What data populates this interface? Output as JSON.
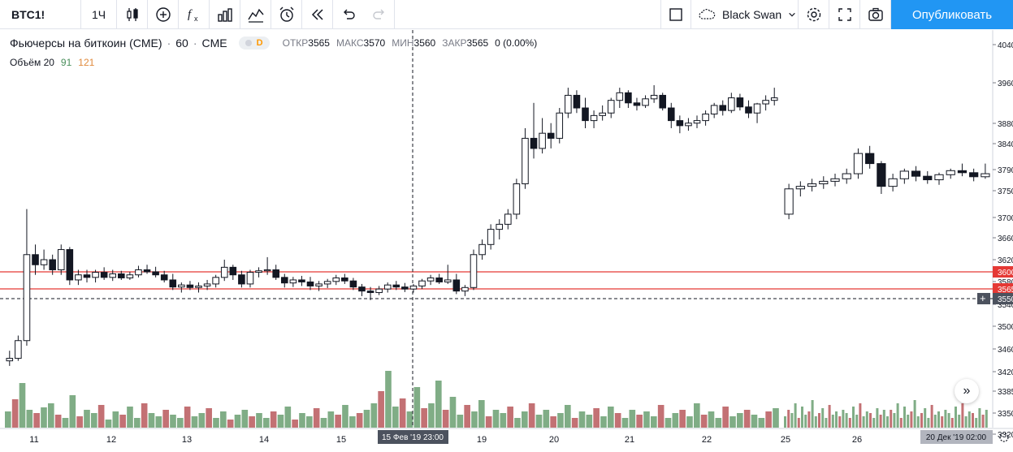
{
  "toolbar": {
    "symbol": "BTC1!",
    "interval": "1Ч",
    "template": "Black Swan",
    "publish": "Опубликовать"
  },
  "legend": {
    "title": "Фьючерсы на биткоин (CME)",
    "sep": "·",
    "interval": "60",
    "exchange": "CME",
    "badge": "D",
    "open_label": "ОТКР",
    "open": "3565",
    "high_label": "МАКС",
    "high": "3570",
    "low_label": "МИН",
    "low": "3560",
    "close_label": "ЗАКР",
    "close": "3565",
    "change": "0 (0.00%)",
    "volume_label": "Объём 20",
    "volume_v1": "91",
    "volume_v2": "121"
  },
  "colors": {
    "up_volume": "#6a9f71",
    "down_volume": "#b8585c",
    "hline": "#e53935",
    "accent": "#2196f3"
  },
  "price_axis": {
    "labels": [
      "4040",
      "3960",
      "3880",
      "3840",
      "3790",
      "3750",
      "3700",
      "3660",
      "3620",
      "3580",
      "3540",
      "3500",
      "3460",
      "3420",
      "3385",
      "3350",
      "3320"
    ],
    "markers": [
      {
        "text": "3600",
        "kind": "red"
      },
      {
        "text": "3565",
        "kind": "red"
      },
      {
        "text": "3550",
        "kind": "dark"
      }
    ]
  },
  "time_axis": {
    "labels": [
      "11",
      "12",
      "13",
      "14",
      "15",
      "19",
      "20",
      "21",
      "22",
      "25",
      "26"
    ],
    "crosshair_label": "15 Фев '19   23:00",
    "range_label": "20 Дек '19   02:00"
  },
  "icons": [
    "candles-icon",
    "add-indicator-icon",
    "fx-icon",
    "compare-icon",
    "templates-icon",
    "alert-icon",
    "replay-icon",
    "undo-icon",
    "redo-icon",
    "fullscreen-icon",
    "settings-icon",
    "expand-icon",
    "camera-icon"
  ],
  "chart_data": {
    "type": "candlestick",
    "title": "Фьючерсы на биткоин (CME) · 60 · CME",
    "ylim": [
      3320,
      4050
    ],
    "hlines": [
      3600,
      3565
    ],
    "crosshair_price": 3550,
    "candles": [
      [
        3420,
        3440,
        3410,
        3425
      ],
      [
        3425,
        3470,
        3420,
        3460
      ],
      [
        3460,
        3720,
        3450,
        3630
      ],
      [
        3630,
        3650,
        3590,
        3610
      ],
      [
        3610,
        3640,
        3600,
        3620
      ],
      [
        3620,
        3630,
        3590,
        3600
      ],
      [
        3600,
        3650,
        3590,
        3640
      ],
      [
        3640,
        3645,
        3570,
        3580
      ],
      [
        3580,
        3600,
        3570,
        3590
      ],
      [
        3590,
        3600,
        3575,
        3585
      ],
      [
        3585,
        3600,
        3575,
        3595
      ],
      [
        3595,
        3605,
        3580,
        3585
      ],
      [
        3585,
        3600,
        3578,
        3592
      ],
      [
        3592,
        3598,
        3580,
        3584
      ],
      [
        3584,
        3596,
        3580,
        3590
      ],
      [
        3590,
        3608,
        3585,
        3600
      ],
      [
        3600,
        3610,
        3592,
        3596
      ],
      [
        3596,
        3606,
        3585,
        3590
      ],
      [
        3590,
        3598,
        3575,
        3580
      ],
      [
        3580,
        3592,
        3560,
        3566
      ],
      [
        3566,
        3575,
        3555,
        3570
      ],
      [
        3570,
        3578,
        3560,
        3565
      ],
      [
        3565,
        3575,
        3555,
        3568
      ],
      [
        3568,
        3580,
        3560,
        3572
      ],
      [
        3572,
        3590,
        3565,
        3585
      ],
      [
        3585,
        3620,
        3578,
        3605
      ],
      [
        3605,
        3610,
        3580,
        3590
      ],
      [
        3590,
        3598,
        3565,
        3572
      ],
      [
        3572,
        3600,
        3565,
        3595
      ],
      [
        3595,
        3605,
        3585,
        3598
      ],
      [
        3598,
        3625,
        3590,
        3600
      ],
      [
        3600,
        3610,
        3580,
        3585
      ],
      [
        3585,
        3592,
        3565,
        3574
      ],
      [
        3574,
        3586,
        3566,
        3580
      ],
      [
        3580,
        3588,
        3568,
        3576
      ],
      [
        3576,
        3586,
        3560,
        3568
      ],
      [
        3568,
        3578,
        3558,
        3572
      ],
      [
        3572,
        3582,
        3564,
        3577
      ],
      [
        3577,
        3590,
        3570,
        3584
      ],
      [
        3584,
        3592,
        3572,
        3578
      ],
      [
        3578,
        3584,
        3560,
        3566
      ],
      [
        3566,
        3572,
        3548,
        3558
      ],
      [
        3558,
        3566,
        3540,
        3555
      ],
      [
        3555,
        3568,
        3550,
        3562
      ],
      [
        3562,
        3575,
        3555,
        3570
      ],
      [
        3570,
        3578,
        3560,
        3566
      ],
      [
        3566,
        3574,
        3556,
        3562
      ],
      [
        3562,
        3572,
        3555,
        3568
      ],
      [
        3568,
        3582,
        3562,
        3578
      ],
      [
        3578,
        3590,
        3570,
        3584
      ],
      [
        3584,
        3592,
        3572,
        3576
      ],
      [
        3576,
        3610,
        3572,
        3580
      ],
      [
        3580,
        3592,
        3552,
        3558
      ],
      [
        3558,
        3570,
        3548,
        3565
      ],
      [
        3565,
        3640,
        3560,
        3630
      ],
      [
        3630,
        3660,
        3620,
        3650
      ],
      [
        3650,
        3690,
        3640,
        3680
      ],
      [
        3680,
        3700,
        3660,
        3690
      ],
      [
        3690,
        3720,
        3680,
        3710
      ],
      [
        3710,
        3780,
        3700,
        3770
      ],
      [
        3770,
        3880,
        3760,
        3860
      ],
      [
        3860,
        3930,
        3820,
        3840
      ],
      [
        3840,
        3900,
        3830,
        3870
      ],
      [
        3870,
        3890,
        3840,
        3860
      ],
      [
        3860,
        3920,
        3850,
        3910
      ],
      [
        3910,
        3960,
        3900,
        3945
      ],
      [
        3945,
        3955,
        3910,
        3920
      ],
      [
        3920,
        3940,
        3880,
        3895
      ],
      [
        3895,
        3915,
        3880,
        3905
      ],
      [
        3905,
        3925,
        3895,
        3910
      ],
      [
        3910,
        3940,
        3900,
        3935
      ],
      [
        3935,
        3960,
        3920,
        3950
      ],
      [
        3950,
        3955,
        3920,
        3930
      ],
      [
        3930,
        3940,
        3915,
        3925
      ],
      [
        3925,
        3945,
        3920,
        3938
      ],
      [
        3938,
        3965,
        3930,
        3945
      ],
      [
        3945,
        3950,
        3915,
        3920
      ],
      [
        3920,
        3930,
        3880,
        3895
      ],
      [
        3895,
        3905,
        3870,
        3885
      ],
      [
        3885,
        3900,
        3875,
        3890
      ],
      [
        3890,
        3905,
        3880,
        3895
      ],
      [
        3895,
        3915,
        3885,
        3908
      ],
      [
        3908,
        3930,
        3900,
        3925
      ],
      [
        3925,
        3935,
        3905,
        3915
      ],
      [
        3915,
        3950,
        3910,
        3940
      ],
      [
        3940,
        3948,
        3915,
        3922
      ],
      [
        3922,
        3935,
        3900,
        3910
      ],
      [
        3910,
        3930,
        3890,
        3928
      ],
      [
        3928,
        3945,
        3915,
        3935
      ],
      [
        3935,
        3960,
        3925,
        3940
      ]
    ],
    "candles_after_gap": [
      [
        3710,
        3770,
        3700,
        3760
      ],
      [
        3760,
        3775,
        3745,
        3765
      ],
      [
        3765,
        3780,
        3755,
        3770
      ],
      [
        3770,
        3785,
        3760,
        3775
      ],
      [
        3775,
        3790,
        3765,
        3780
      ],
      [
        3780,
        3800,
        3770,
        3790
      ],
      [
        3790,
        3840,
        3780,
        3830
      ],
      [
        3830,
        3845,
        3800,
        3810
      ],
      [
        3810,
        3815,
        3750,
        3765
      ],
      [
        3765,
        3790,
        3755,
        3780
      ],
      [
        3780,
        3800,
        3770,
        3795
      ],
      [
        3795,
        3805,
        3775,
        3785
      ],
      [
        3785,
        3795,
        3770,
        3778
      ],
      [
        3778,
        3792,
        3768,
        3788
      ],
      [
        3788,
        3800,
        3780,
        3796
      ],
      [
        3796,
        3810,
        3785,
        3792
      ],
      [
        3792,
        3800,
        3775,
        3784
      ],
      [
        3784,
        3810,
        3780,
        3790
      ]
    ],
    "volumes": [
      20,
      35,
      55,
      22,
      18,
      25,
      30,
      16,
      12,
      40,
      14,
      22,
      18,
      28,
      10,
      20,
      16,
      26,
      12,
      30,
      18,
      14,
      22,
      16,
      12,
      26,
      14,
      18,
      24,
      12,
      20,
      10,
      16,
      22,
      14,
      18,
      12,
      20,
      16,
      26,
      10,
      18,
      14,
      24,
      12,
      20,
      16,
      28,
      14,
      18,
      22,
      30,
      45,
      70,
      26,
      36,
      20,
      50,
      24,
      30,
      58,
      22,
      38,
      16,
      28,
      20,
      34,
      14,
      22,
      18,
      26,
      12,
      20,
      30,
      16,
      22,
      14,
      18,
      28,
      12,
      20,
      16,
      24,
      14,
      26,
      18,
      12,
      22,
      16,
      20,
      14,
      28,
      12,
      18,
      22,
      14,
      30,
      16,
      20,
      12,
      26,
      14,
      18,
      22,
      16,
      12,
      20,
      24
    ]
  }
}
